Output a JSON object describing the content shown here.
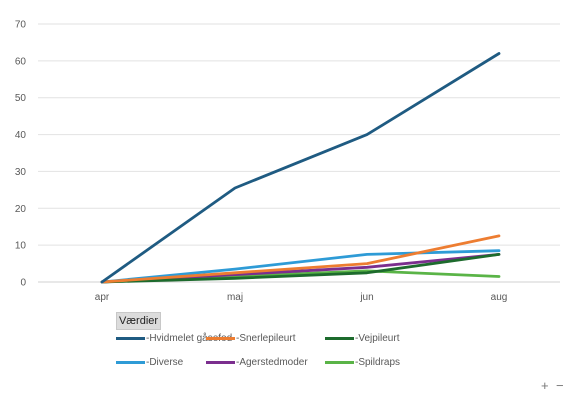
{
  "chart_data": {
    "type": "line",
    "categories": [
      "apr",
      "maj",
      "jun",
      "aug"
    ],
    "ylim": [
      0,
      70
    ],
    "yticks": [
      0,
      10,
      20,
      30,
      40,
      50,
      60,
      70
    ],
    "grid": true,
    "legend_position": "bottom",
    "title": "",
    "xlabel": "",
    "ylabel": "",
    "series": [
      {
        "name": "Hvidmelet gåsefod",
        "color": "#1f5b82",
        "values": [
          0,
          25.5,
          40,
          62
        ]
      },
      {
        "name": "Snerlepileurt",
        "color": "#ed7d31",
        "values": [
          0,
          2.5,
          5,
          12.5
        ]
      },
      {
        "name": "Vejpileurt",
        "color": "#1d6b2d",
        "values": [
          0,
          1,
          2.5,
          7.5
        ]
      },
      {
        "name": "Diverse",
        "color": "#2e9bd6",
        "values": [
          0,
          3.5,
          7.5,
          8.5
        ]
      },
      {
        "name": "Agerstedmoder",
        "color": "#7b2e8e",
        "values": [
          0,
          2,
          4,
          7.5
        ]
      },
      {
        "name": "Spildraps",
        "color": "#5ab447",
        "values": [
          0,
          1.5,
          3,
          1.5
        ]
      }
    ]
  },
  "field_button": "Værdier",
  "legend_prefix": "-",
  "zoom": {
    "plus": "+",
    "minus": "−"
  }
}
